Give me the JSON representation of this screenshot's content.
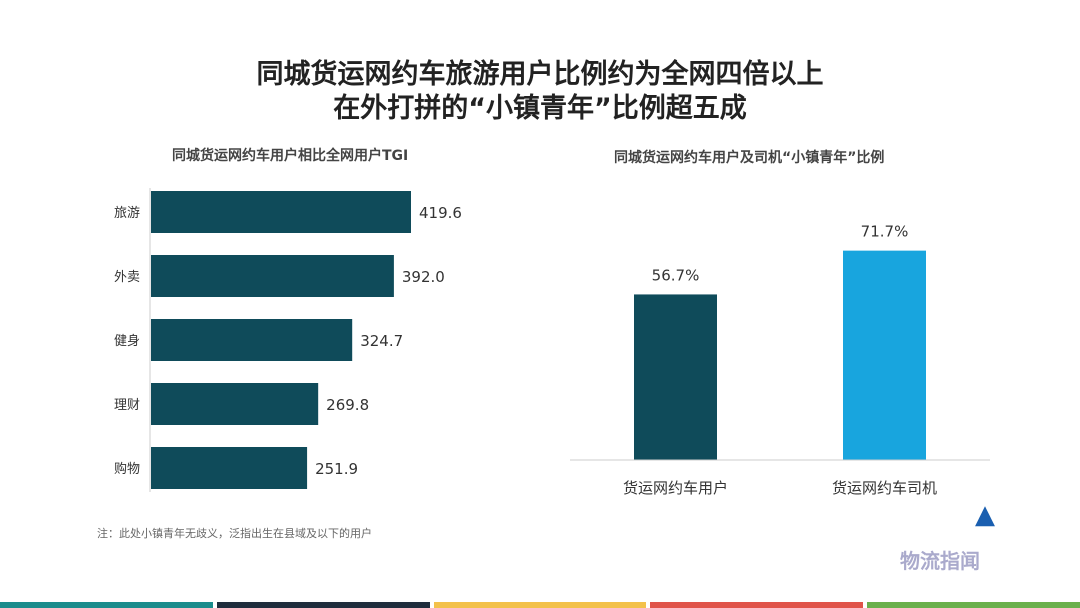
{
  "title_line1": "同城货运网约车旅游用户比例约为全网四倍以上",
  "title_line2": "在外打拼的“小镇青年”比例超五成",
  "note": "注：此处小镇青年无歧义，泛指出生在县域及以下的用户",
  "watermark": "物流指闻",
  "colors": {
    "dark": "#0f4b5a",
    "light": "#18a5de",
    "stripes": [
      "#1a8c8c",
      "#1f2d3d",
      "#f3c14b",
      "#e0544a",
      "#6ab04c"
    ]
  },
  "chart_data": [
    {
      "type": "bar",
      "orientation": "horizontal",
      "title": "同城货运网约车用户相比全网用户TGI",
      "categories": [
        "旅游",
        "外卖",
        "健身",
        "理财",
        "购物"
      ],
      "values": [
        419.6,
        392.0,
        324.7,
        269.8,
        251.9
      ],
      "labels": [
        "419.6",
        "392.0",
        "324.7",
        "269.8",
        "251.9"
      ],
      "xlim": [
        0,
        420
      ]
    },
    {
      "type": "bar",
      "title": "同城货运网约车用户及司机“小镇青年”比例",
      "categories": [
        "货运网约车用户",
        "货运网约车司机"
      ],
      "values": [
        56.7,
        71.7
      ],
      "labels": [
        "56.7%",
        "71.7%"
      ],
      "ylim": [
        0,
        72
      ]
    }
  ]
}
